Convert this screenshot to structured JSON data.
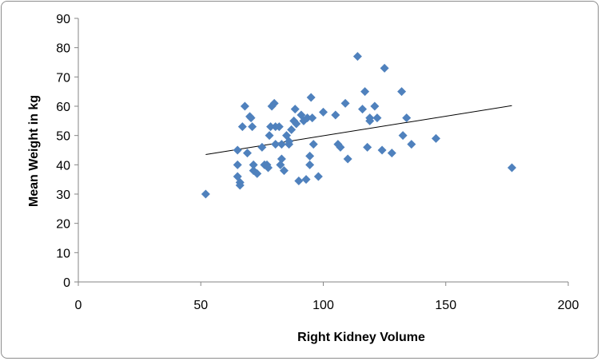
{
  "chart_data": {
    "type": "scatter",
    "title": "",
    "xlabel": "Right Kidney Volume",
    "ylabel": "Mean Weight in kg",
    "xlim": [
      0,
      200
    ],
    "ylim": [
      0,
      90
    ],
    "x_ticks": [
      0,
      50,
      100,
      150,
      200
    ],
    "y_ticks": [
      0,
      10,
      20,
      30,
      40,
      50,
      60,
      70,
      80,
      90
    ],
    "grid": false,
    "legend": "none",
    "marker": "diamond",
    "marker_color": "#4f81bd",
    "trendline": {
      "type": "linear",
      "x": [
        52,
        177
      ],
      "y": [
        43.5,
        60.2
      ],
      "color": "#000000"
    },
    "series": [
      {
        "points": [
          [
            52,
            30
          ],
          [
            65,
            45
          ],
          [
            65,
            40
          ],
          [
            65,
            36
          ],
          [
            66,
            34
          ],
          [
            66,
            33
          ],
          [
            67,
            53
          ],
          [
            68,
            60
          ],
          [
            69,
            44
          ],
          [
            70,
            56.5
          ],
          [
            70.5,
            56
          ],
          [
            71,
            53
          ],
          [
            71.5,
            40
          ],
          [
            71.5,
            38
          ],
          [
            73,
            37
          ],
          [
            75,
            46
          ],
          [
            76,
            40
          ],
          [
            77,
            40
          ],
          [
            77.5,
            39
          ],
          [
            78,
            50
          ],
          [
            78.5,
            53
          ],
          [
            79,
            60
          ],
          [
            80,
            61
          ],
          [
            80.5,
            47
          ],
          [
            80.5,
            53
          ],
          [
            82,
            53
          ],
          [
            82.5,
            40
          ],
          [
            83,
            42
          ],
          [
            83,
            47
          ],
          [
            84,
            38
          ],
          [
            85,
            50
          ],
          [
            86,
            47
          ],
          [
            86,
            48
          ],
          [
            87,
            52
          ],
          [
            88,
            55
          ],
          [
            88.5,
            59
          ],
          [
            89,
            54
          ],
          [
            90,
            34.5
          ],
          [
            91,
            57
          ],
          [
            92,
            55
          ],
          [
            93,
            35
          ],
          [
            93.5,
            56
          ],
          [
            94.5,
            43
          ],
          [
            94.5,
            40
          ],
          [
            95,
            63
          ],
          [
            95.5,
            56
          ],
          [
            96,
            47
          ],
          [
            98,
            36
          ],
          [
            100,
            58
          ],
          [
            105,
            57
          ],
          [
            106,
            47
          ],
          [
            107,
            46
          ],
          [
            109,
            61
          ],
          [
            110,
            42
          ],
          [
            114,
            77
          ],
          [
            116,
            59
          ],
          [
            117,
            65
          ],
          [
            118,
            46
          ],
          [
            119,
            55
          ],
          [
            119,
            56
          ],
          [
            121,
            60
          ],
          [
            122,
            56
          ],
          [
            124,
            45
          ],
          [
            125,
            73
          ],
          [
            128,
            44
          ],
          [
            132,
            65
          ],
          [
            132.5,
            50
          ],
          [
            134,
            56
          ],
          [
            136,
            47
          ],
          [
            146,
            49
          ],
          [
            177,
            39
          ]
        ]
      }
    ]
  }
}
